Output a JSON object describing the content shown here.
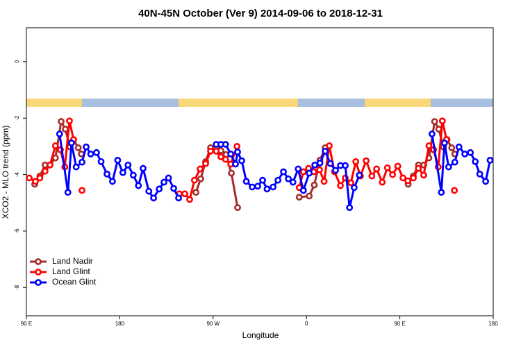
{
  "chart_data": {
    "type": "line",
    "title": "40N-45N October (Ver 9)   2014-09-06 to 2018-12-31",
    "xlabel": "Longitude",
    "ylabel": "XCO2 - MLO trend (ppm)",
    "xlim": [
      90,
      540
    ],
    "ylim": [
      -9,
      1.2
    ],
    "xticks": [
      {
        "value": 90,
        "label": "90 E"
      },
      180,
      {
        "value": 270,
        "label": "90 W"
      },
      {
        "value": 360,
        "label": "0"
      },
      {
        "value": 450,
        "label": "90 E"
      },
      {
        "value": 540,
        "label": "180"
      }
    ],
    "yticks": [
      -8,
      -6,
      -4,
      -2,
      0
    ],
    "legend": "bottomleft",
    "series": [
      {
        "name": "Land Nadir",
        "color": "#a52a2a",
        "x": [
          98,
          103,
          108,
          112.8,
          118,
          123.5,
          127.5,
          132,
          135.5,
          140,
          143,
          null,
          253.4,
          258,
          262.8,
          267.5,
          273,
          277.5,
          282.5,
          287.6,
          293.6,
          null,
          353,
          362.6,
          367.5,
          373,
          378,
          null,
          458,
          463,
          468,
          473,
          478,
          483.5,
          487.5,
          492,
          495.5,
          500,
          503
        ],
        "values": [
          -4.34,
          -4.05,
          -3.66,
          -3.66,
          -3.41,
          -2.12,
          -2.39,
          -3.02,
          -2.76,
          -3.05,
          -3.27,
          null,
          -4.63,
          -4.15,
          -3.54,
          -3.05,
          -3.05,
          -3.15,
          -3.29,
          -3.95,
          -5.17,
          null,
          -4.8,
          -4.76,
          -4.37,
          -3.49,
          -3.05,
          null,
          -4.34,
          -4.05,
          -3.66,
          -3.66,
          -3.41,
          -2.12,
          -2.39,
          -3.02,
          -2.76,
          -3.05,
          -3.27
        ]
      },
      {
        "name": "Land Glint",
        "color": "#ff0000",
        "x": [
          92.7,
          98.7,
          103,
          108,
          112.8,
          118,
          122.8,
          127,
          131.5,
          135.5,
          null,
          143.6,
          null,
          237.4,
          242.7,
          247.4,
          252,
          257.5,
          262.8,
          267.5,
          273,
          277.5,
          282,
          287,
          293,
          null,
          353,
          357,
          362,
          367,
          372.6,
          377,
          382,
          387,
          392.7,
          397.4,
          402.8,
          407.5,
          412,
          417.5,
          423,
          427.6,
          433,
          438,
          443,
          448,
          453,
          457.7,
          463,
          467.8,
          473,
          478,
          482.5,
          487,
          491,
          495,
          null,
          502.6
        ],
        "values": [
          -4.12,
          -4.24,
          -4.12,
          -3.88,
          -3.66,
          -2.98,
          -3.12,
          -3.73,
          -2.1,
          -2.76,
          null,
          -4.56,
          null,
          -4.68,
          -4.68,
          -4.88,
          -4.2,
          -3.8,
          -3.61,
          -3.17,
          -3.17,
          -3.37,
          -3.46,
          -3.63,
          -3.0,
          null,
          -4.46,
          -3.9,
          -3.78,
          -3.9,
          -3.83,
          -4.24,
          -2.98,
          -3.9,
          -4.39,
          -4.12,
          -4.29,
          -3.54,
          -4.05,
          -3.51,
          -4.05,
          -3.8,
          -4.27,
          -3.76,
          -4.0,
          -3.7,
          -4.12,
          -4.22,
          -4.12,
          -3.78,
          -4.02,
          -2.98,
          -3.12,
          -3.73,
          -2.1,
          -2.76,
          null,
          -4.56
        ]
      },
      {
        "name": "Ocean Glint",
        "color": "#0000ff",
        "x": [
          122,
          130,
          133.5,
          138,
          143.6,
          147.6,
          152,
          157.6,
          162,
          167.7,
          173,
          178,
          183,
          188,
          193,
          198,
          202.5,
          208,
          212.6,
          218,
          222.6,
          227,
          232,
          236.7,
          null,
          273,
          277.5,
          282,
          287,
          291.6,
          293.6,
          297.6,
          302,
          307.7,
          313,
          317.7,
          322,
          327.8,
          332.5,
          337.8,
          342.5,
          347,
          352,
          357,
          362.6,
          368,
          373,
          378,
          383,
          388,
          392.7,
          397.4,
          401.5,
          406,
          411,
          null,
          481,
          490,
          493,
          497,
          503,
          507,
          512.6,
          518,
          522.7,
          527,
          532.7,
          537
        ],
        "values": [
          -2.56,
          -4.63,
          -2.88,
          -3.73,
          -3.56,
          -3.02,
          -3.27,
          -3.22,
          -3.54,
          -3.98,
          -4.24,
          -3.49,
          -3.93,
          -3.66,
          -4.02,
          -4.39,
          -3.78,
          -4.59,
          -4.83,
          -4.51,
          -4.27,
          -4.12,
          -4.49,
          -4.83,
          null,
          -2.93,
          -2.93,
          -2.93,
          -3.27,
          -3.63,
          -3.2,
          -3.51,
          -4.24,
          -4.44,
          -4.41,
          -4.2,
          -4.51,
          -4.44,
          -4.2,
          -3.9,
          -4.15,
          -4.27,
          -3.8,
          -4.56,
          -3.95,
          -3.66,
          -3.59,
          -3.17,
          -3.61,
          -3.85,
          -3.68,
          -3.68,
          -5.17,
          -4.46,
          -4.02,
          null,
          -2.56,
          -4.63,
          -2.88,
          -3.73,
          -3.56,
          -3.02,
          -3.27,
          -3.22,
          -3.54,
          -3.98,
          -4.24,
          -3.49
        ]
      }
    ]
  }
}
